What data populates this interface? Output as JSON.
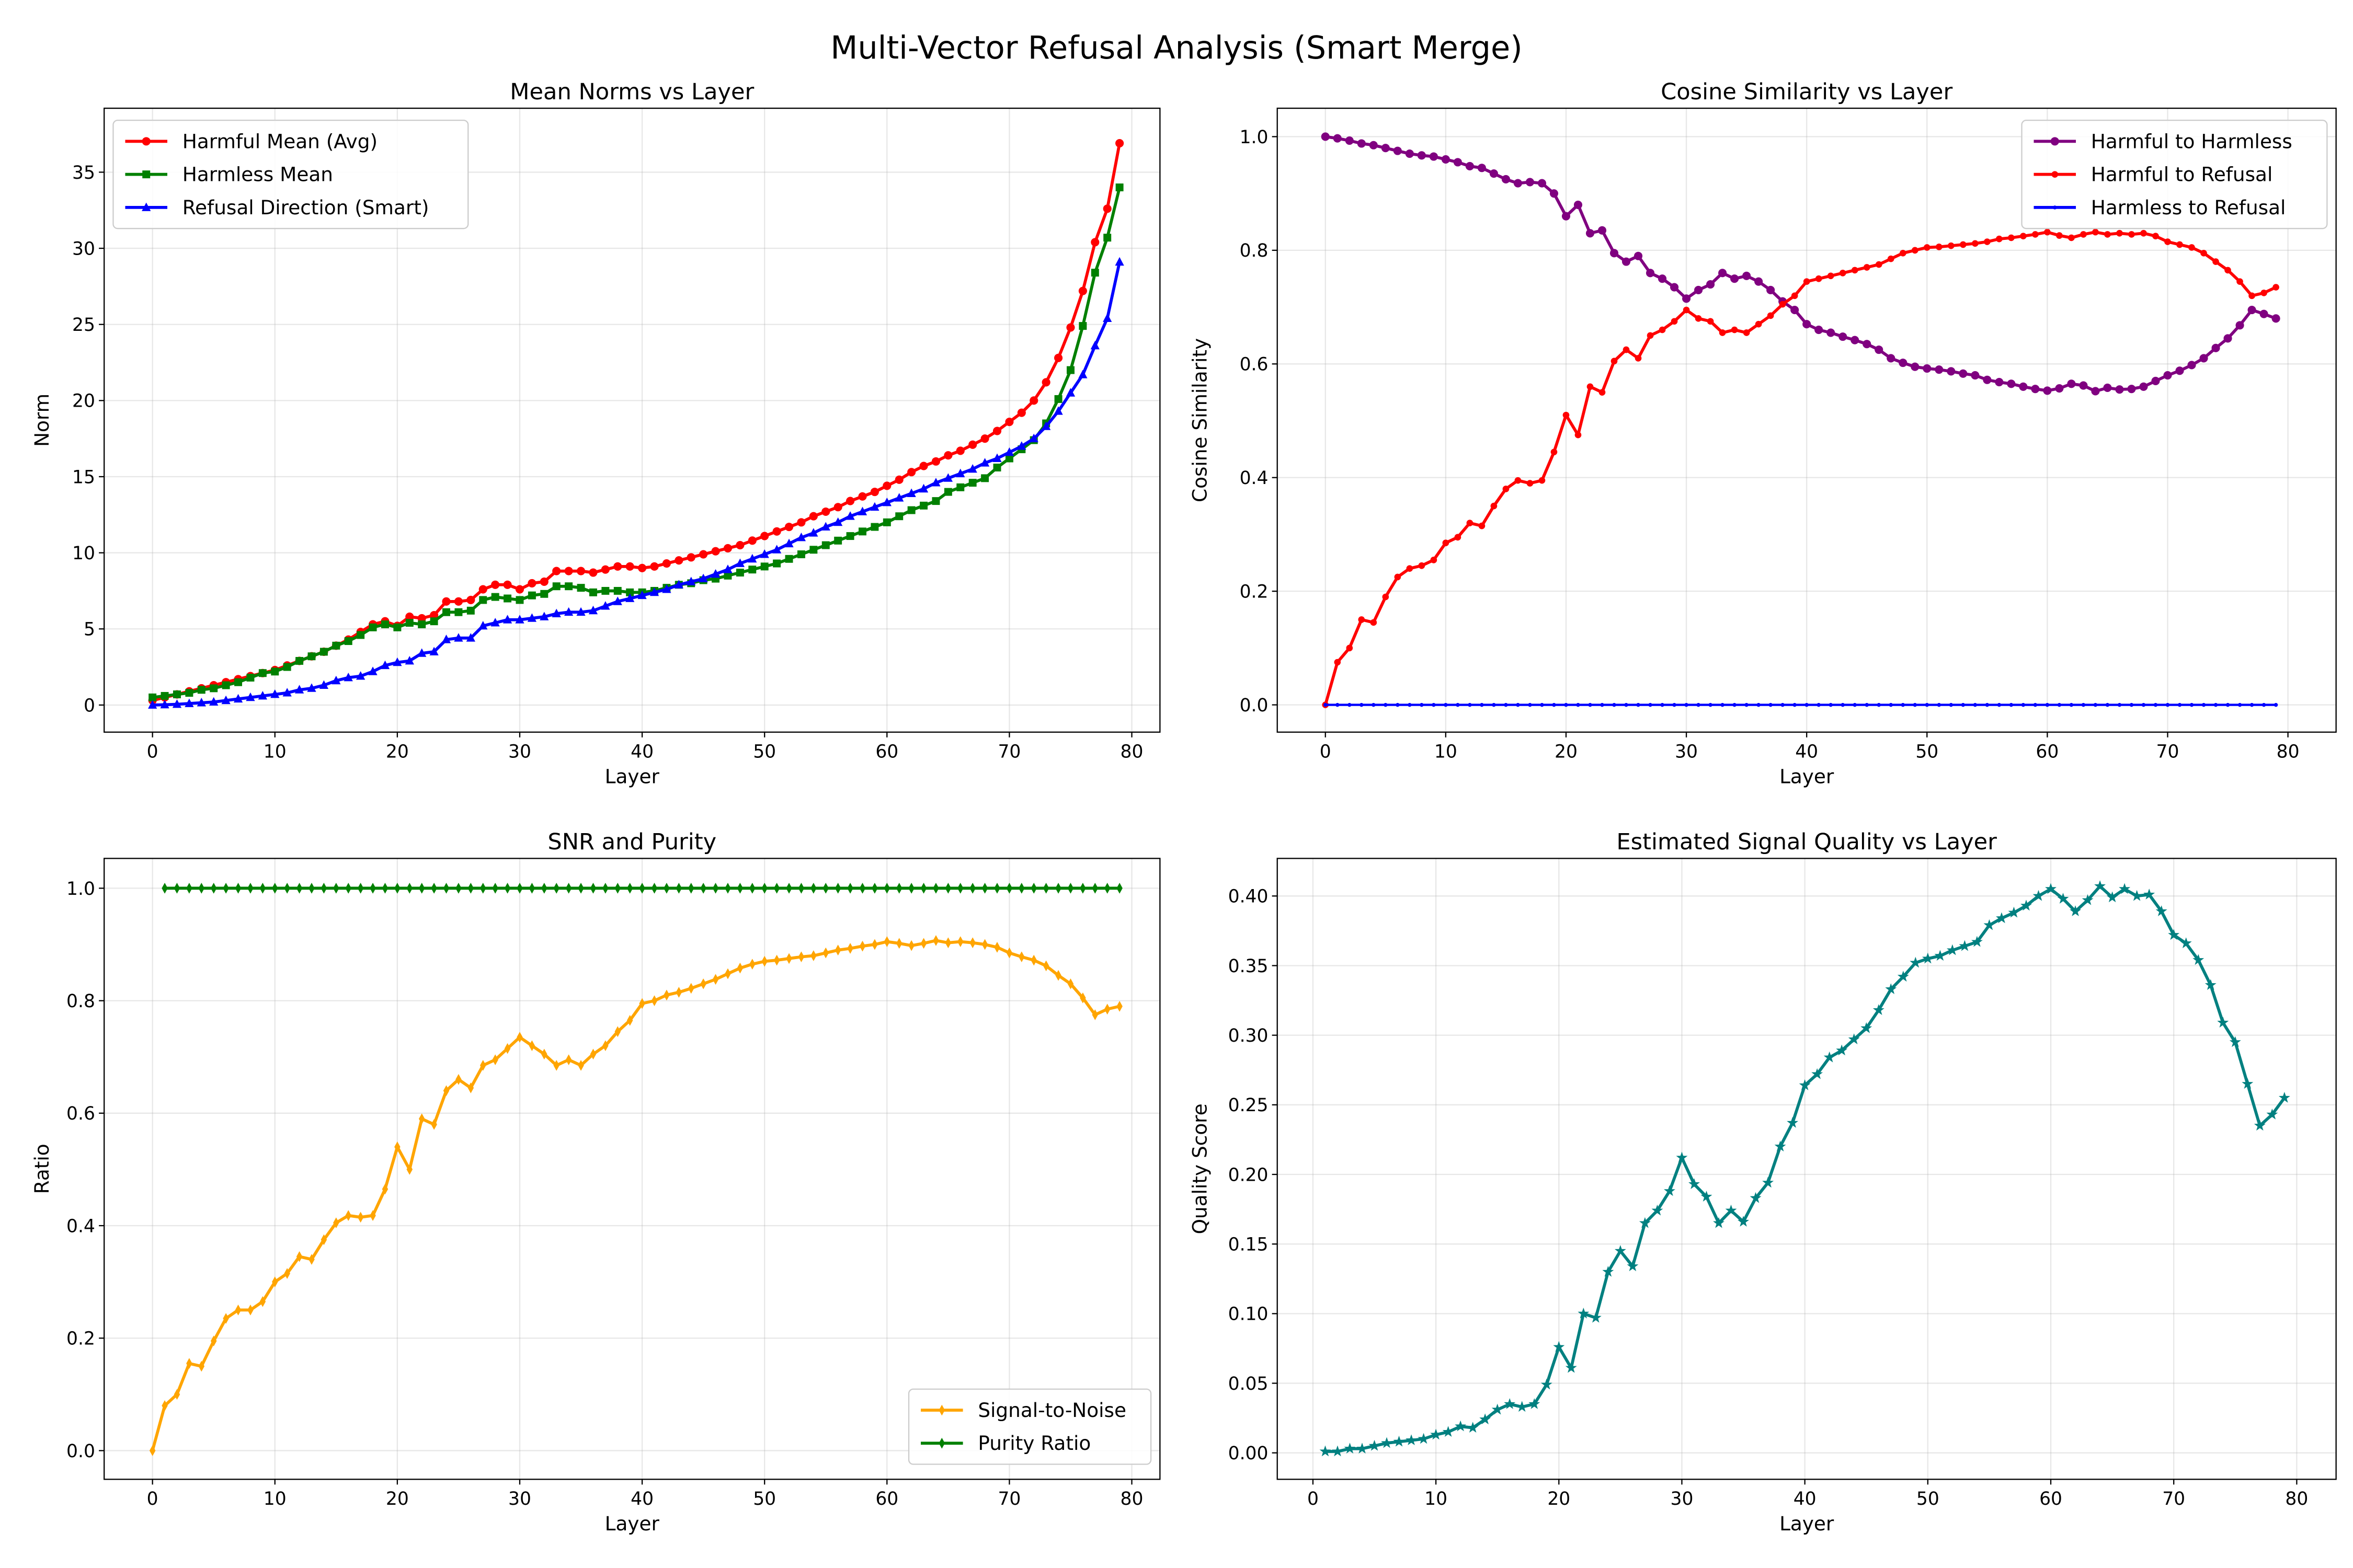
{
  "figure_title": "Multi-Vector Refusal Analysis (Smart Merge)",
  "chart_data": [
    {
      "type": "line",
      "title": "Mean Norms vs Layer",
      "xlabel": "Layer",
      "ylabel": "Norm",
      "xlim": [
        -3.95,
        82.3
      ],
      "ylim": [
        -1.78,
        39.2
      ],
      "xticks": [
        0,
        10,
        20,
        30,
        40,
        50,
        60,
        70,
        80
      ],
      "yticks": [
        0,
        5,
        10,
        15,
        20,
        25,
        30,
        35
      ],
      "tick_format": "int",
      "grid": true,
      "legend": "upper-left",
      "x_start": 0,
      "series": [
        {
          "name": "Harmful Mean (Avg)",
          "color": "#ff0000",
          "marker": "circle",
          "values": [
            0.3,
            0.5,
            0.7,
            0.9,
            1.1,
            1.3,
            1.5,
            1.7,
            1.9,
            2.1,
            2.3,
            2.6,
            2.9,
            3.2,
            3.5,
            3.9,
            4.3,
            4.8,
            5.3,
            5.5,
            5.2,
            5.8,
            5.7,
            5.9,
            6.8,
            6.8,
            6.9,
            7.6,
            7.9,
            7.9,
            7.6,
            8.0,
            8.1,
            8.8,
            8.8,
            8.8,
            8.7,
            8.9,
            9.1,
            9.1,
            9.0,
            9.1,
            9.3,
            9.5,
            9.7,
            9.9,
            10.1,
            10.3,
            10.5,
            10.8,
            11.1,
            11.4,
            11.7,
            12.0,
            12.4,
            12.7,
            13.0,
            13.4,
            13.7,
            14.0,
            14.4,
            14.8,
            15.3,
            15.7,
            16.0,
            16.4,
            16.7,
            17.1,
            17.5,
            18.0,
            18.6,
            19.2,
            20.0,
            21.2,
            22.8,
            24.8,
            27.2,
            30.4,
            32.6,
            36.9
          ]
        },
        {
          "name": "Harmless Mean",
          "color": "#008000",
          "marker": "square",
          "values": [
            0.5,
            0.6,
            0.7,
            0.8,
            1.0,
            1.1,
            1.3,
            1.5,
            1.8,
            2.1,
            2.2,
            2.5,
            2.9,
            3.2,
            3.5,
            3.9,
            4.2,
            4.6,
            5.1,
            5.3,
            5.1,
            5.4,
            5.3,
            5.5,
            6.1,
            6.1,
            6.2,
            6.9,
            7.1,
            7.0,
            6.9,
            7.2,
            7.3,
            7.8,
            7.8,
            7.7,
            7.4,
            7.5,
            7.5,
            7.4,
            7.4,
            7.5,
            7.7,
            7.9,
            8.0,
            8.2,
            8.3,
            8.5,
            8.7,
            8.9,
            9.1,
            9.3,
            9.6,
            9.9,
            10.2,
            10.5,
            10.8,
            11.1,
            11.4,
            11.7,
            12.0,
            12.4,
            12.8,
            13.1,
            13.4,
            14.0,
            14.3,
            14.6,
            14.9,
            15.6,
            16.2,
            16.8,
            17.4,
            18.5,
            20.1,
            22.0,
            24.9,
            28.4,
            30.7,
            34.0
          ]
        },
        {
          "name": "Refusal Direction (Smart)",
          "color": "#0000ff",
          "marker": "triangle",
          "values": [
            0.0,
            0.02,
            0.05,
            0.1,
            0.15,
            0.2,
            0.3,
            0.4,
            0.5,
            0.6,
            0.7,
            0.8,
            1.0,
            1.1,
            1.3,
            1.6,
            1.8,
            1.9,
            2.2,
            2.6,
            2.8,
            2.9,
            3.4,
            3.5,
            4.3,
            4.4,
            4.4,
            5.2,
            5.4,
            5.6,
            5.6,
            5.7,
            5.8,
            6.0,
            6.1,
            6.1,
            6.2,
            6.5,
            6.8,
            7.0,
            7.2,
            7.4,
            7.6,
            7.9,
            8.1,
            8.3,
            8.6,
            8.9,
            9.3,
            9.6,
            9.9,
            10.2,
            10.6,
            11.0,
            11.3,
            11.7,
            12.0,
            12.4,
            12.7,
            13.0,
            13.3,
            13.6,
            13.9,
            14.2,
            14.6,
            14.9,
            15.2,
            15.5,
            15.9,
            16.2,
            16.6,
            17.0,
            17.5,
            18.3,
            19.3,
            20.5,
            21.7,
            23.6,
            25.4,
            29.1
          ]
        }
      ]
    },
    {
      "type": "line",
      "title": "Cosine Similarity vs Layer",
      "xlabel": "Layer",
      "ylabel": "Cosine Similarity",
      "xlim": [
        -4,
        84
      ],
      "ylim": [
        -0.048,
        1.05
      ],
      "xticks": [
        0,
        10,
        20,
        30,
        40,
        50,
        60,
        70,
        80
      ],
      "yticks": [
        0.0,
        0.2,
        0.4,
        0.6,
        0.8,
        1.0
      ],
      "tick_format": "1dp",
      "grid": true,
      "legend": "upper-right",
      "x_start": 0,
      "series": [
        {
          "name": "Harmful to Harmless",
          "color": "#800080",
          "marker": "circle",
          "values": [
            1.0,
            0.997,
            0.993,
            0.988,
            0.985,
            0.98,
            0.975,
            0.97,
            0.967,
            0.965,
            0.96,
            0.955,
            0.948,
            0.945,
            0.935,
            0.925,
            0.918,
            0.92,
            0.918,
            0.9,
            0.86,
            0.88,
            0.83,
            0.835,
            0.795,
            0.78,
            0.79,
            0.76,
            0.75,
            0.735,
            0.715,
            0.73,
            0.74,
            0.76,
            0.75,
            0.755,
            0.745,
            0.73,
            0.71,
            0.695,
            0.67,
            0.66,
            0.655,
            0.648,
            0.642,
            0.635,
            0.625,
            0.61,
            0.602,
            0.595,
            0.592,
            0.59,
            0.587,
            0.583,
            0.58,
            0.572,
            0.568,
            0.565,
            0.56,
            0.556,
            0.553,
            0.557,
            0.565,
            0.562,
            0.552,
            0.558,
            0.555,
            0.556,
            0.56,
            0.57,
            0.58,
            0.588,
            0.598,
            0.61,
            0.628,
            0.645,
            0.668,
            0.695,
            0.688,
            0.68
          ]
        },
        {
          "name": "Harmful to Refusal",
          "color": "#ff0000",
          "marker": "circle-small",
          "values": [
            0.0,
            0.075,
            0.1,
            0.15,
            0.145,
            0.19,
            0.225,
            0.24,
            0.245,
            0.255,
            0.285,
            0.295,
            0.32,
            0.315,
            0.35,
            0.38,
            0.395,
            0.39,
            0.395,
            0.445,
            0.51,
            0.475,
            0.56,
            0.55,
            0.605,
            0.625,
            0.61,
            0.65,
            0.66,
            0.675,
            0.695,
            0.68,
            0.675,
            0.655,
            0.66,
            0.655,
            0.67,
            0.685,
            0.705,
            0.72,
            0.745,
            0.75,
            0.755,
            0.76,
            0.765,
            0.77,
            0.775,
            0.785,
            0.795,
            0.8,
            0.805,
            0.806,
            0.808,
            0.81,
            0.812,
            0.815,
            0.82,
            0.822,
            0.825,
            0.828,
            0.832,
            0.826,
            0.822,
            0.828,
            0.832,
            0.828,
            0.83,
            0.828,
            0.83,
            0.825,
            0.815,
            0.81,
            0.805,
            0.795,
            0.78,
            0.765,
            0.745,
            0.72,
            0.725,
            0.735
          ]
        },
        {
          "name": "Harmless to Refusal",
          "color": "#0000ff",
          "marker": "point",
          "values": [
            0,
            0,
            0,
            0,
            0,
            0,
            0,
            0,
            0,
            0,
            0,
            0,
            0,
            0,
            0,
            0,
            0,
            0,
            0,
            0,
            0,
            0,
            0,
            0,
            0,
            0,
            0,
            0,
            0,
            0,
            0,
            0,
            0,
            0,
            0,
            0,
            0,
            0,
            0,
            0,
            0,
            0,
            0,
            0,
            0,
            0,
            0,
            0,
            0,
            0,
            0,
            0,
            0,
            0,
            0,
            0,
            0,
            0,
            0,
            0,
            0,
            0,
            0,
            0,
            0,
            0,
            0,
            0,
            0,
            0,
            0,
            0,
            0,
            0,
            0,
            0,
            0,
            0,
            0,
            0
          ]
        }
      ]
    },
    {
      "type": "line",
      "title": "SNR and Purity",
      "xlabel": "Layer",
      "ylabel": "Ratio",
      "xlim": [
        -3.95,
        82.3
      ],
      "ylim": [
        -0.051,
        1.053
      ],
      "xticks": [
        0,
        10,
        20,
        30,
        40,
        50,
        60,
        70,
        80
      ],
      "yticks": [
        0.0,
        0.2,
        0.4,
        0.6,
        0.8,
        1.0
      ],
      "tick_format": "1dp",
      "grid": true,
      "legend": "lower-right",
      "x_start": 0,
      "series": [
        {
          "name": "Signal-to-Noise",
          "color": "#ffa500",
          "marker": "thin-diamond",
          "values": [
            0.0,
            0.08,
            0.1,
            0.155,
            0.15,
            0.195,
            0.235,
            0.25,
            0.25,
            0.265,
            0.3,
            0.315,
            0.345,
            0.34,
            0.375,
            0.405,
            0.418,
            0.415,
            0.418,
            0.465,
            0.54,
            0.5,
            0.59,
            0.58,
            0.64,
            0.66,
            0.645,
            0.685,
            0.695,
            0.715,
            0.735,
            0.72,
            0.705,
            0.685,
            0.695,
            0.685,
            0.705,
            0.72,
            0.745,
            0.765,
            0.795,
            0.8,
            0.81,
            0.815,
            0.822,
            0.83,
            0.838,
            0.848,
            0.858,
            0.865,
            0.87,
            0.872,
            0.875,
            0.878,
            0.88,
            0.885,
            0.89,
            0.893,
            0.897,
            0.9,
            0.905,
            0.902,
            0.898,
            0.902,
            0.907,
            0.903,
            0.905,
            0.903,
            0.9,
            0.895,
            0.885,
            0.878,
            0.872,
            0.862,
            0.845,
            0.83,
            0.805,
            0.775,
            0.785,
            0.79
          ]
        },
        {
          "name": "Purity Ratio",
          "color": "#008000",
          "marker": "thin-diamond",
          "values": [
            null,
            1,
            1,
            1,
            1,
            1,
            1,
            1,
            1,
            1,
            1,
            1,
            1,
            1,
            1,
            1,
            1,
            1,
            1,
            1,
            1,
            1,
            1,
            1,
            1,
            1,
            1,
            1,
            1,
            1,
            1,
            1,
            1,
            1,
            1,
            1,
            1,
            1,
            1,
            1,
            1,
            1,
            1,
            1,
            1,
            1,
            1,
            1,
            1,
            1,
            1,
            1,
            1,
            1,
            1,
            1,
            1,
            1,
            1,
            1,
            1,
            1,
            1,
            1,
            1,
            1,
            1,
            1,
            1,
            1,
            1,
            1,
            1,
            1,
            1,
            1,
            1,
            1,
            1,
            1
          ]
        }
      ]
    },
    {
      "type": "line",
      "title": "Estimated Signal Quality vs Layer",
      "xlabel": "Layer",
      "ylabel": "Quality Score",
      "xlim": [
        -2.9,
        83.2
      ],
      "ylim": [
        -0.019,
        0.427
      ],
      "xticks": [
        0,
        10,
        20,
        30,
        40,
        50,
        60,
        70,
        80
      ],
      "yticks": [
        0.0,
        0.05,
        0.1,
        0.15,
        0.2,
        0.25,
        0.3,
        0.35,
        0.4
      ],
      "tick_format": "2dp",
      "grid": true,
      "legend": "none",
      "x_start": 1,
      "series": [
        {
          "color": "#008080",
          "marker": "star",
          "values": [
            0.001,
            0.001,
            0.003,
            0.003,
            0.005,
            0.007,
            0.008,
            0.009,
            0.01,
            0.013,
            0.015,
            0.019,
            0.018,
            0.024,
            0.031,
            0.035,
            0.033,
            0.035,
            0.049,
            0.076,
            0.061,
            0.1,
            0.097,
            0.13,
            0.145,
            0.134,
            0.165,
            0.174,
            0.188,
            0.212,
            0.193,
            0.184,
            0.165,
            0.174,
            0.166,
            0.183,
            0.194,
            0.22,
            0.237,
            0.264,
            0.272,
            0.284,
            0.289,
            0.297,
            0.305,
            0.318,
            0.333,
            0.342,
            0.352,
            0.355,
            0.357,
            0.361,
            0.364,
            0.367,
            0.379,
            0.384,
            0.388,
            0.393,
            0.4,
            0.405,
            0.398,
            0.389,
            0.397,
            0.407,
            0.399,
            0.405,
            0.4,
            0.401,
            0.389,
            0.372,
            0.366,
            0.354,
            0.336,
            0.309,
            0.295,
            0.265,
            0.235,
            0.243,
            0.255
          ]
        }
      ]
    }
  ]
}
